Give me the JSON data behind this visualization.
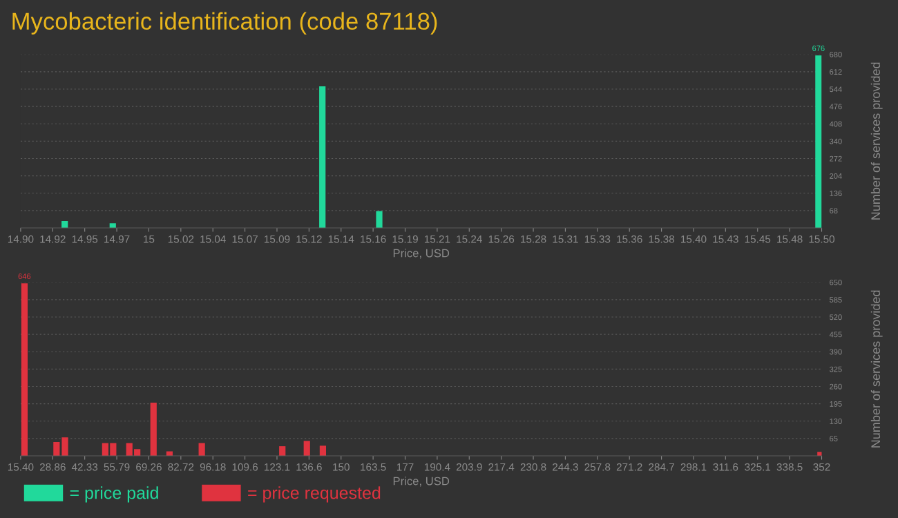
{
  "chart_data": [
    {
      "type": "bar",
      "title": "Mycobacteric identification (code 87118)",
      "xlabel": "Price, USD",
      "ylabel": "Number of services provided",
      "series": [
        {
          "name": "= price paid",
          "color": "#21d99b",
          "x": [
            14.933,
            14.969,
            15.126,
            15.1686,
            15.4976
          ],
          "values": [
            27,
            18,
            555,
            66,
            676
          ],
          "value_labels": [
            null,
            null,
            null,
            null,
            "676"
          ]
        }
      ],
      "xlim": [
        14.9,
        15.5
      ],
      "ylim": [
        0,
        680
      ],
      "xticks": [
        {
          "value": 14.9,
          "label": "14.90"
        },
        {
          "value": 14.924,
          "label": "14.92"
        },
        {
          "value": 14.948,
          "label": "14.95"
        },
        {
          "value": 14.972,
          "label": "14.97"
        },
        {
          "value": 14.996,
          "label": "15"
        },
        {
          "value": 15.02,
          "label": "15.02"
        },
        {
          "value": 15.044,
          "label": "15.04"
        },
        {
          "value": 15.068,
          "label": "15.07"
        },
        {
          "value": 15.092,
          "label": "15.09"
        },
        {
          "value": 15.116,
          "label": "15.12"
        },
        {
          "value": 15.14,
          "label": "15.14"
        },
        {
          "value": 15.164,
          "label": "15.16"
        },
        {
          "value": 15.188,
          "label": "15.19"
        },
        {
          "value": 15.212,
          "label": "15.21"
        },
        {
          "value": 15.236,
          "label": "15.24"
        },
        {
          "value": 15.26,
          "label": "15.26"
        },
        {
          "value": 15.284,
          "label": "15.28"
        },
        {
          "value": 15.308,
          "label": "15.31"
        },
        {
          "value": 15.332,
          "label": "15.33"
        },
        {
          "value": 15.356,
          "label": "15.36"
        },
        {
          "value": 15.38,
          "label": "15.38"
        },
        {
          "value": 15.404,
          "label": "15.40"
        },
        {
          "value": 15.428,
          "label": "15.43"
        },
        {
          "value": 15.452,
          "label": "15.45"
        },
        {
          "value": 15.476,
          "label": "15.48"
        },
        {
          "value": 15.5,
          "label": "15.50"
        }
      ],
      "yticks": [
        68,
        136,
        204,
        272,
        340,
        408,
        476,
        544,
        612,
        680
      ],
      "grid": "y",
      "legend": "bottom"
    },
    {
      "type": "bar",
      "xlabel": "Price, USD",
      "ylabel": "Number of services provided",
      "series": [
        {
          "name": "= price requested",
          "color": "#e0333f",
          "x": [
            17.0,
            30.48,
            34.0,
            50.95,
            54.28,
            61.06,
            64.38,
            71.23,
            77.95,
            91.52,
            125.36,
            135.67,
            142.4,
            351.5
          ],
          "values": [
            646,
            52,
            69,
            48,
            48,
            48,
            25,
            199,
            17,
            48,
            36,
            56,
            38,
            15
          ],
          "value_labels": [
            "646",
            null,
            null,
            null,
            null,
            null,
            null,
            null,
            null,
            null,
            null,
            null,
            null,
            null
          ]
        }
      ],
      "xlim": [
        15.4,
        352
      ],
      "ylim": [
        0,
        650
      ],
      "xticks": [
        {
          "value": 15.4,
          "label": "15.40"
        },
        {
          "value": 28.864,
          "label": "28.86"
        },
        {
          "value": 42.328,
          "label": "42.33"
        },
        {
          "value": 55.792,
          "label": "55.79"
        },
        {
          "value": 69.256,
          "label": "69.26"
        },
        {
          "value": 82.72,
          "label": "82.72"
        },
        {
          "value": 96.184,
          "label": "96.18"
        },
        {
          "value": 109.648,
          "label": "109.6"
        },
        {
          "value": 123.112,
          "label": "123.1"
        },
        {
          "value": 136.576,
          "label": "136.6"
        },
        {
          "value": 150.04,
          "label": "150"
        },
        {
          "value": 163.504,
          "label": "163.5"
        },
        {
          "value": 176.968,
          "label": "177"
        },
        {
          "value": 190.432,
          "label": "190.4"
        },
        {
          "value": 203.896,
          "label": "203.9"
        },
        {
          "value": 217.36,
          "label": "217.4"
        },
        {
          "value": 230.824,
          "label": "230.8"
        },
        {
          "value": 244.288,
          "label": "244.3"
        },
        {
          "value": 257.752,
          "label": "257.8"
        },
        {
          "value": 271.216,
          "label": "271.2"
        },
        {
          "value": 284.68,
          "label": "284.7"
        },
        {
          "value": 298.144,
          "label": "298.1"
        },
        {
          "value": 311.608,
          "label": "311.6"
        },
        {
          "value": 325.072,
          "label": "325.1"
        },
        {
          "value": 338.536,
          "label": "338.5"
        },
        {
          "value": 352,
          "label": "352"
        }
      ],
      "yticks": [
        65,
        130,
        195,
        260,
        325,
        390,
        455,
        520,
        585,
        650
      ],
      "grid": "y",
      "legend": "bottom"
    }
  ]
}
